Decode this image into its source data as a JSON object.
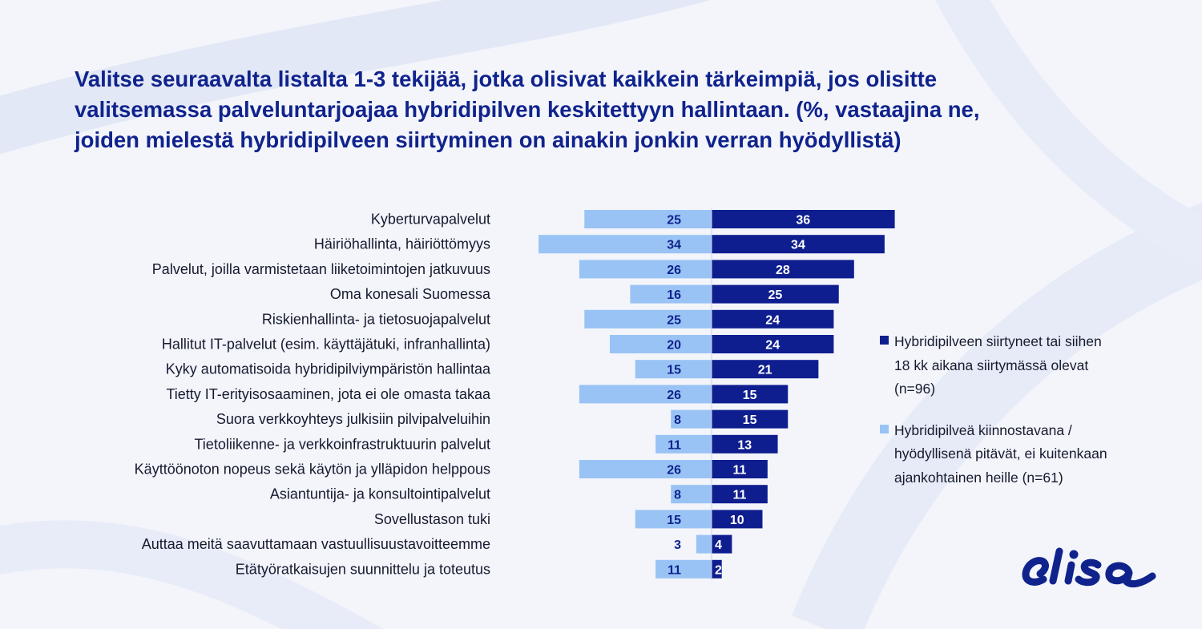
{
  "title": {
    "line1": "Valitse seuraavalta listalta 1-3 tekijää, jotka olisivat kaikkein tärkeimpiä, jos olisitte",
    "line2": "valitsemassa palveluntarjoajaa hybridipilven keskitettyyn hallintaan. (%, vastaajina ne,",
    "line3": "joiden mielestä hybridipilveen siirtyminen  on ainakin jonkin verran hyödyllistä)"
  },
  "chart_data": {
    "type": "bar",
    "orientation": "horizontal-diverging",
    "title": "Valitse seuraavalta listalta 1-3 tekijää, jotka olisivat kaikkein tärkeimpiä, jos olisitte valitsemassa palveluntarjoajaa hybridipilven keskitettyyn hallintaan. (%, vastaajina ne, joiden mielestä hybridipilveen siirtyminen  on ainakin jonkin verran hyödyllistä)",
    "categories": [
      "Kyberturvapalvelut",
      "Häiriöhallinta, häiriöttömyys",
      "Palvelut, joilla varmistetaan liiketoimintojen jatkuvuus",
      "Oma konesali Suomessa",
      "Riskienhallinta- ja tietosuojapalvelut",
      "Hallitut IT-palvelut (esim. käyttäjätuki, infranhallinta)",
      "Kyky automatisoida hybridipilviympäristön hallintaa",
      "Tietty IT-erityisosaaminen, jota ei ole omasta takaa",
      "Suora verkkoyhteys julkisiin pilvipalveluihin",
      "Tietoliikenne- ja verkkoinfrastruktuurin palvelut",
      "Käyttöönoton nopeus sekä käytön ja ylläpidon helppous",
      "Asiantuntija- ja konsultointipalvelut",
      "Sovellustason tuki",
      "Auttaa meitä saavuttamaan vastuullisuustavoitteemme",
      "Etätyöratkaisujen suunnittelu ja toteutus"
    ],
    "series": [
      {
        "name": "Hybridipilveen siirtyneet tai siihen\n18 kk aikana siirtymässä olevat\n(n=96)",
        "side": "right",
        "color": "#0f1e8f",
        "values": [
          36,
          34,
          28,
          25,
          24,
          24,
          21,
          15,
          15,
          13,
          11,
          11,
          10,
          4,
          2
        ]
      },
      {
        "name": "Hybridipilveä kiinnostavana /\nhyödyllisenä pitävät, ei kuitenkaan\najankohtainen heille (n=61)",
        "side": "left",
        "color": "#99c3f5",
        "values": [
          25,
          34,
          26,
          16,
          25,
          20,
          15,
          26,
          8,
          11,
          26,
          8,
          15,
          3,
          11
        ]
      }
    ],
    "xlabel": "",
    "ylabel": "",
    "grid": false,
    "legend": "right"
  },
  "logo": {
    "text": "elisa",
    "color": "#10238c"
  }
}
